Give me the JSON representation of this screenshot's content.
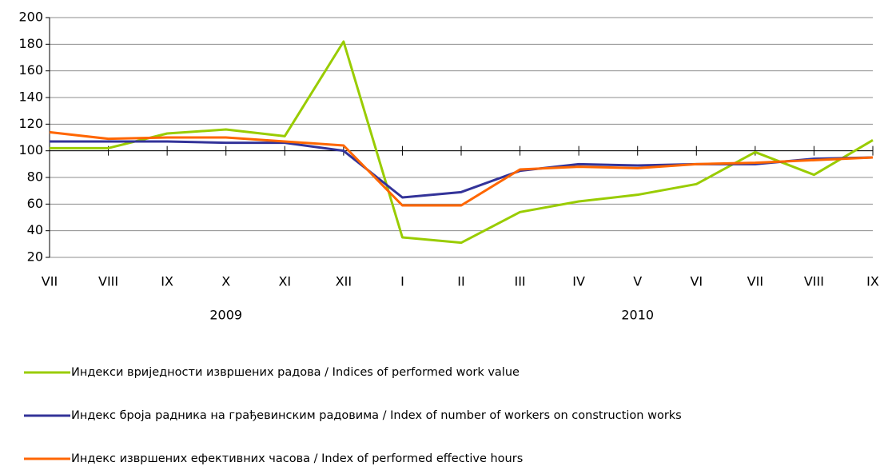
{
  "chart_data": {
    "type": "line",
    "categories": [
      "VII",
      "VIII",
      "IX",
      "X",
      "XI",
      "XII",
      "I",
      "II",
      "III",
      "IV",
      "V",
      "VI",
      "VII",
      "VIII",
      "IX"
    ],
    "category_groups": [
      {
        "name": "2009",
        "count": 6
      },
      {
        "name": "2010",
        "count": 9
      }
    ],
    "series": [
      {
        "name": "Индекси вриједности извршених радова / Indices of performed work value",
        "color": "#99cc00",
        "values": [
          102,
          102,
          113,
          116,
          111,
          182,
          35,
          31,
          54,
          62,
          67,
          75,
          99,
          82,
          108
        ]
      },
      {
        "name": "Индекс броја радника на грађевинским радовима / Index of number of workers on construction works",
        "color": "#333399",
        "values": [
          107,
          107,
          107,
          106,
          106,
          100,
          65,
          69,
          85,
          90,
          89,
          90,
          90,
          94,
          95
        ]
      },
      {
        "name": "Индекс извршених ефективних часова / Index of performed effective hours",
        "color": "#ff6600",
        "values": [
          114,
          109,
          110,
          110,
          107,
          104,
          59,
          59,
          86,
          88,
          87,
          90,
          91,
          93,
          95
        ]
      }
    ],
    "ylim": [
      20,
      200
    ],
    "yticks": [
      20,
      40,
      60,
      80,
      100,
      120,
      140,
      160,
      180,
      200
    ],
    "x_axis_crosses": 100,
    "grid": true,
    "legend": "bottom"
  }
}
